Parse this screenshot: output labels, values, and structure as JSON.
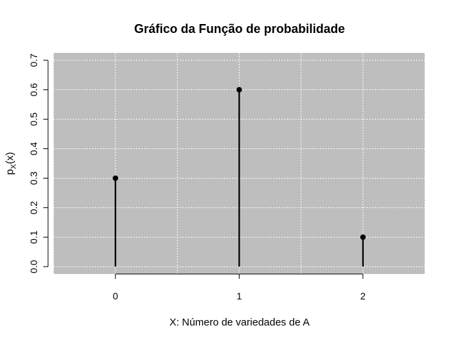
{
  "chart_data": {
    "type": "stem",
    "title": "Gráfico da Função de probabilidade",
    "xlabel": "X: Número de variedades de A",
    "ylabel_main": "p",
    "ylabel_sub": "X",
    "ylabel_tail": "(x)",
    "x": [
      0,
      1,
      2
    ],
    "values": [
      0.3,
      0.6,
      0.1
    ],
    "x_ticks": [
      "0",
      "1",
      "2"
    ],
    "y_ticks": [
      "0.0",
      "0.1",
      "0.2",
      "0.3",
      "0.4",
      "0.5",
      "0.6",
      "0.7"
    ],
    "xlim": [
      -0.5,
      2.5
    ],
    "ylim": [
      -0.025,
      0.725
    ],
    "grid": true,
    "legend": "none",
    "colors": {
      "panel_background": "#bebebe",
      "grid": "#ffffff",
      "stem": "#000000",
      "point": "#000000"
    }
  }
}
